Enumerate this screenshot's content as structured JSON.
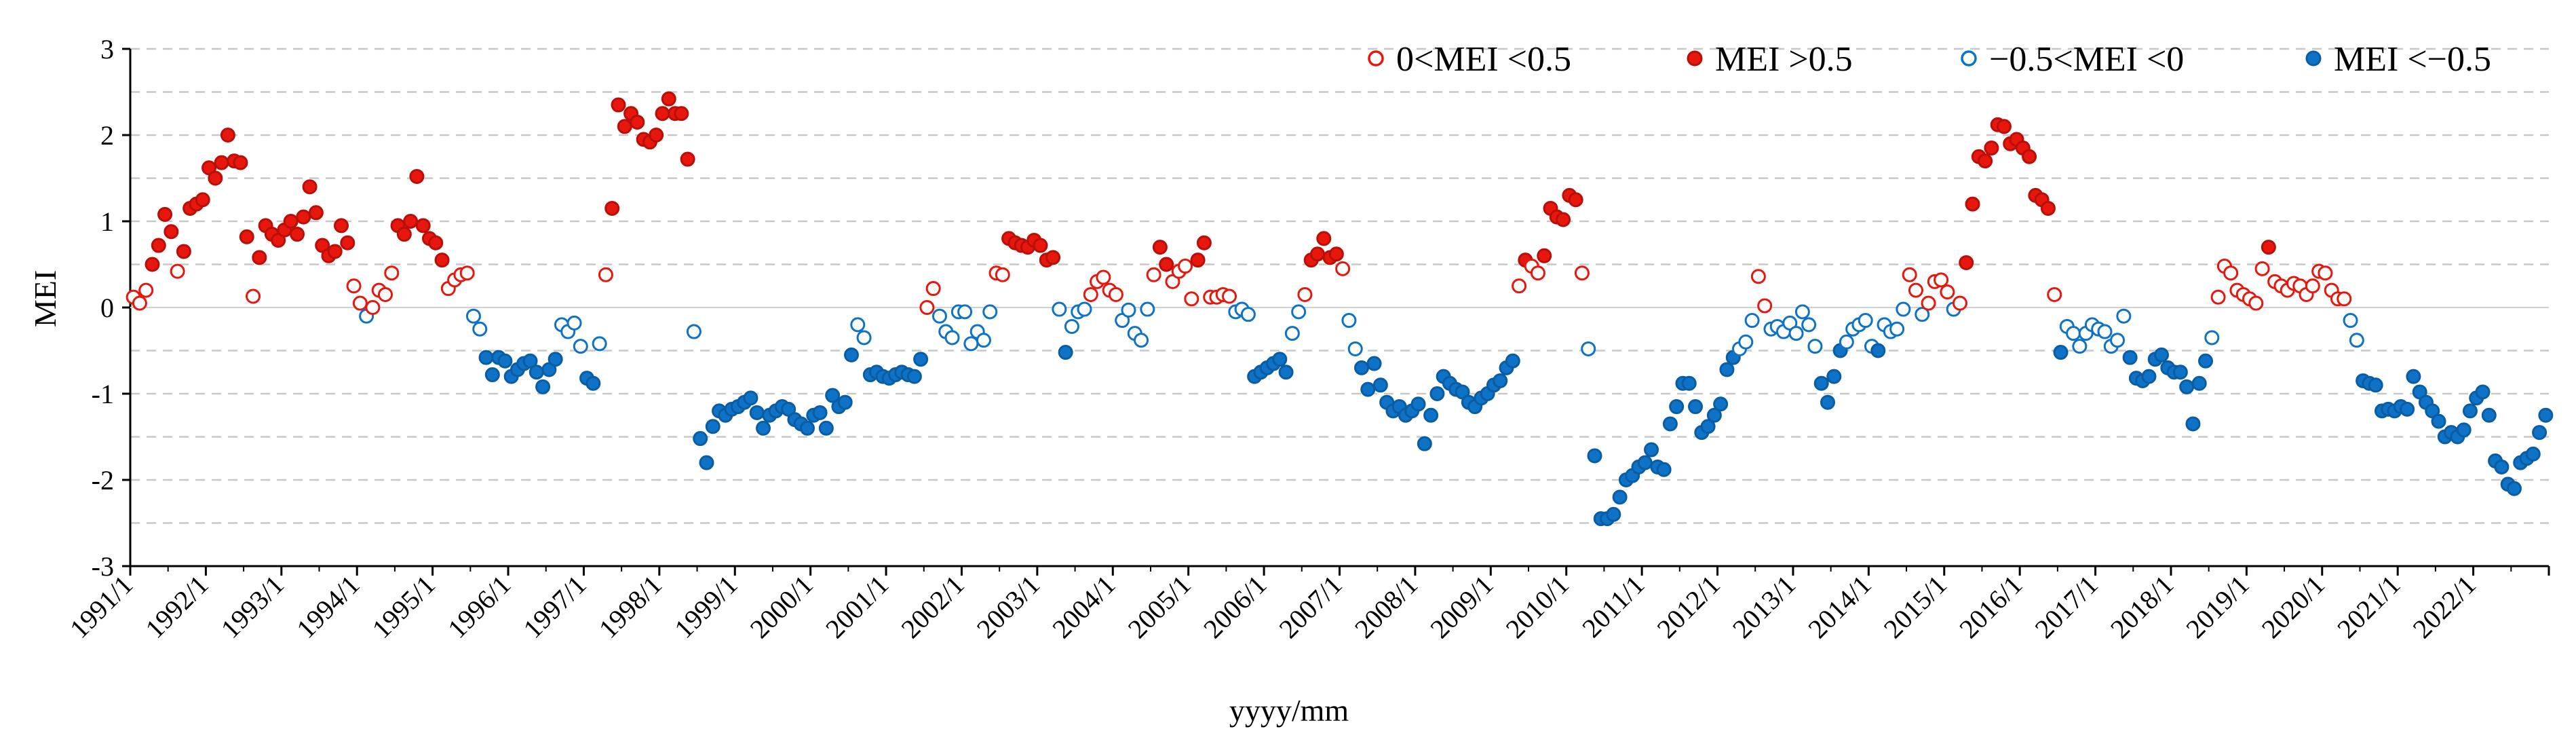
{
  "chart_data": {
    "type": "scatter",
    "title": "",
    "xlabel": "yyyy/mm",
    "ylabel": "MEI",
    "ylim": [
      -3,
      3
    ],
    "yticks": [
      "-3",
      "-2",
      "-1",
      "0",
      "1",
      "2",
      "3"
    ],
    "xstart": "1991/1",
    "xend": "2022/12",
    "xticks": [
      "1991/1",
      "1992/1",
      "1993/1",
      "1994/1",
      "1995/1",
      "1996/1",
      "1997/1",
      "1998/1",
      "1999/1",
      "2000/1",
      "2001/1",
      "2002/1",
      "2003/1",
      "2004/1",
      "2005/1",
      "2006/1",
      "2007/1",
      "2008/1",
      "2009/1",
      "2010/1",
      "2011/1",
      "2012/1",
      "2013/1",
      "2014/1",
      "2015/1",
      "2016/1",
      "2017/1",
      "2018/1",
      "2019/1",
      "2020/1",
      "2021/1",
      "2022/1"
    ],
    "grid": "horizontal dashed",
    "legend_position": "top-right",
    "legend": [
      {
        "label": "0<MEI <0.5",
        "style": "open-red"
      },
      {
        "label": "MEI >0.5",
        "style": "filled-red"
      },
      {
        "label": "−0.5<MEI <0",
        "style": "open-blue"
      },
      {
        "label": "MEI <−0.5",
        "style": "filled-blue"
      }
    ],
    "colors": {
      "red": "#e8170e",
      "red_fill": "#e8170e",
      "blue": "#0e72c6",
      "blue_fill": "#0e72c6",
      "grid": "#c8c8c8"
    },
    "series_rule": "points classified into legend classes by value",
    "monthly_values": [
      0.12,
      0.05,
      0.2,
      0.5,
      0.72,
      1.08,
      0.88,
      0.42,
      0.65,
      1.15,
      1.2,
      1.25,
      1.62,
      1.5,
      1.68,
      2.0,
      1.7,
      1.68,
      0.82,
      0.13,
      0.58,
      0.95,
      0.85,
      0.78,
      0.9,
      1.0,
      0.85,
      1.05,
      1.4,
      1.1,
      0.72,
      0.6,
      0.65,
      0.95,
      0.75,
      0.25,
      0.05,
      -0.1,
      0.0,
      0.2,
      0.15,
      0.4,
      0.95,
      0.85,
      1.0,
      1.52,
      0.95,
      0.8,
      0.75,
      0.55,
      0.22,
      0.32,
      0.38,
      0.4,
      -0.1,
      -0.25,
      -0.58,
      -0.78,
      -0.58,
      -0.62,
      -0.8,
      -0.72,
      -0.65,
      -0.62,
      -0.75,
      -0.92,
      -0.72,
      -0.6,
      -0.2,
      -0.28,
      -0.18,
      -0.45,
      -0.82,
      -0.88,
      -0.42,
      0.38,
      1.15,
      2.35,
      2.1,
      2.25,
      2.15,
      1.95,
      1.92,
      2.0,
      2.25,
      2.42,
      2.25,
      2.25,
      1.72,
      -0.28,
      -1.52,
      -1.8,
      -1.38,
      -1.2,
      -1.25,
      -1.18,
      -1.15,
      -1.1,
      -1.05,
      -1.22,
      -1.4,
      -1.25,
      -1.2,
      -1.15,
      -1.18,
      -1.3,
      -1.35,
      -1.4,
      -1.25,
      -1.22,
      -1.4,
      -1.02,
      -1.15,
      -1.1,
      -0.55,
      -0.2,
      -0.35,
      -0.78,
      -0.75,
      -0.8,
      -0.82,
      -0.78,
      -0.75,
      -0.78,
      -0.8,
      -0.6,
      0.0,
      0.22,
      -0.1,
      -0.28,
      -0.35,
      -0.05,
      -0.05,
      -0.42,
      -0.28,
      -0.38,
      -0.05,
      0.4,
      0.38,
      0.8,
      0.75,
      0.72,
      0.7,
      0.78,
      0.72,
      0.55,
      0.58,
      -0.02,
      -0.52,
      -0.22,
      -0.05,
      -0.02,
      0.15,
      0.3,
      0.35,
      0.2,
      0.15,
      -0.15,
      -0.03,
      -0.3,
      -0.38,
      -0.02,
      0.38,
      0.7,
      0.5,
      0.3,
      0.42,
      0.48,
      0.1,
      0.55,
      0.75,
      0.12,
      0.12,
      0.15,
      0.13,
      -0.05,
      -0.02,
      -0.08,
      -0.8,
      -0.75,
      -0.7,
      -0.65,
      -0.6,
      -0.75,
      -0.3,
      -0.05,
      0.15,
      0.55,
      0.62,
      0.8,
      0.58,
      0.62,
      0.45,
      -0.15,
      -0.48,
      -0.7,
      -0.95,
      -0.65,
      -0.9,
      -1.1,
      -1.2,
      -1.15,
      -1.25,
      -1.2,
      -1.12,
      -1.58,
      -1.25,
      -1.0,
      -0.8,
      -0.88,
      -0.95,
      -0.98,
      -1.1,
      -1.15,
      -1.05,
      -1.0,
      -0.9,
      -0.85,
      -0.7,
      -0.62,
      0.25,
      0.55,
      0.48,
      0.4,
      0.6,
      1.15,
      1.05,
      1.02,
      1.3,
      1.25,
      0.4,
      -0.48,
      -1.72,
      -2.45,
      -2.45,
      -2.4,
      -2.2,
      -2.0,
      -1.95,
      -1.85,
      -1.8,
      -1.65,
      -1.85,
      -1.88,
      -1.35,
      -1.15,
      -0.88,
      -0.88,
      -1.15,
      -1.45,
      -1.38,
      -1.25,
      -1.12,
      -0.72,
      -0.58,
      -0.48,
      -0.4,
      -0.15,
      0.36,
      0.02,
      -0.25,
      -0.22,
      -0.28,
      -0.18,
      -0.3,
      -0.05,
      -0.2,
      -0.45,
      -0.88,
      -1.1,
      -0.8,
      -0.5,
      -0.4,
      -0.25,
      -0.2,
      -0.15,
      -0.45,
      -0.5,
      -0.2,
      -0.28,
      -0.25,
      -0.02,
      0.38,
      0.2,
      -0.08,
      0.05,
      0.3,
      0.32,
      0.18,
      -0.02,
      0.05,
      0.52,
      1.2,
      1.75,
      1.7,
      1.85,
      2.12,
      2.1,
      1.9,
      1.95,
      1.85,
      1.75,
      1.3,
      1.25,
      1.15,
      0.15,
      -0.52,
      -0.22,
      -0.3,
      -0.45,
      -0.3,
      -0.2,
      -0.25,
      -0.28,
      -0.45,
      -0.38,
      -0.1,
      -0.58,
      -0.82,
      -0.85,
      -0.8,
      -0.6,
      -0.55,
      -0.7,
      -0.75,
      -0.75,
      -0.92,
      -1.35,
      -0.88,
      -0.62,
      -0.35,
      0.12,
      0.48,
      0.4,
      0.2,
      0.15,
      0.1,
      0.05,
      0.45,
      0.7,
      0.3,
      0.25,
      0.2,
      0.28,
      0.25,
      0.15,
      0.25,
      0.42,
      0.4,
      0.2,
      0.1,
      0.1,
      -0.15,
      -0.38,
      -0.85,
      -0.88,
      -0.9,
      -1.2,
      -1.18,
      -1.2,
      -1.15,
      -1.18,
      -0.8,
      -0.98,
      -1.1,
      -1.2,
      -1.32,
      -1.5,
      -1.45,
      -1.5,
      -1.42,
      -1.2,
      -1.05,
      -0.98,
      -1.25,
      -1.78,
      -1.85,
      -2.05,
      -2.1,
      -1.8,
      -1.75,
      -1.7,
      -1.45,
      -1.25
    ]
  }
}
